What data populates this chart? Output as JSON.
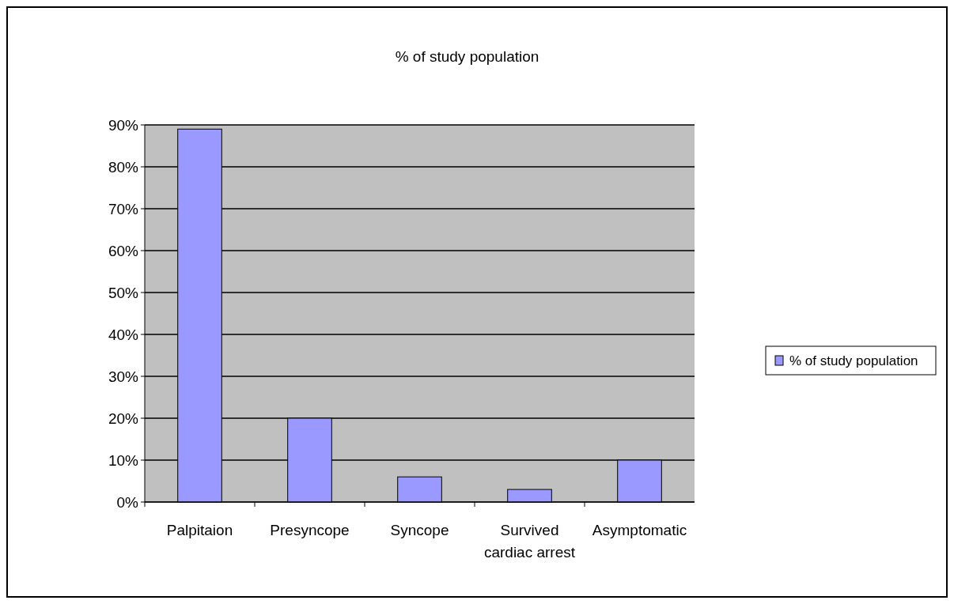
{
  "chart_data": {
    "type": "bar",
    "title": "% of study population",
    "categories": [
      "Palpitaion",
      "Presyncope",
      "Syncope",
      "Survived cardiac arrest",
      "Asymptomatic"
    ],
    "series": [
      {
        "name": "% of study population",
        "color": "#9999ff",
        "values": [
          89,
          20,
          6,
          3,
          10
        ]
      }
    ],
    "ylim": [
      0,
      90
    ],
    "yticks": [
      {
        "value": 0,
        "label": "0%"
      },
      {
        "value": 10,
        "label": "10%"
      },
      {
        "value": 20,
        "label": "20%"
      },
      {
        "value": 30,
        "label": "30%"
      },
      {
        "value": 40,
        "label": "40%"
      },
      {
        "value": 50,
        "label": "50%"
      },
      {
        "value": 60,
        "label": "60%"
      },
      {
        "value": 70,
        "label": "70%"
      },
      {
        "value": 80,
        "label": "80%"
      },
      {
        "value": 90,
        "label": "90%"
      }
    ],
    "grid": "y",
    "legend": "right"
  }
}
